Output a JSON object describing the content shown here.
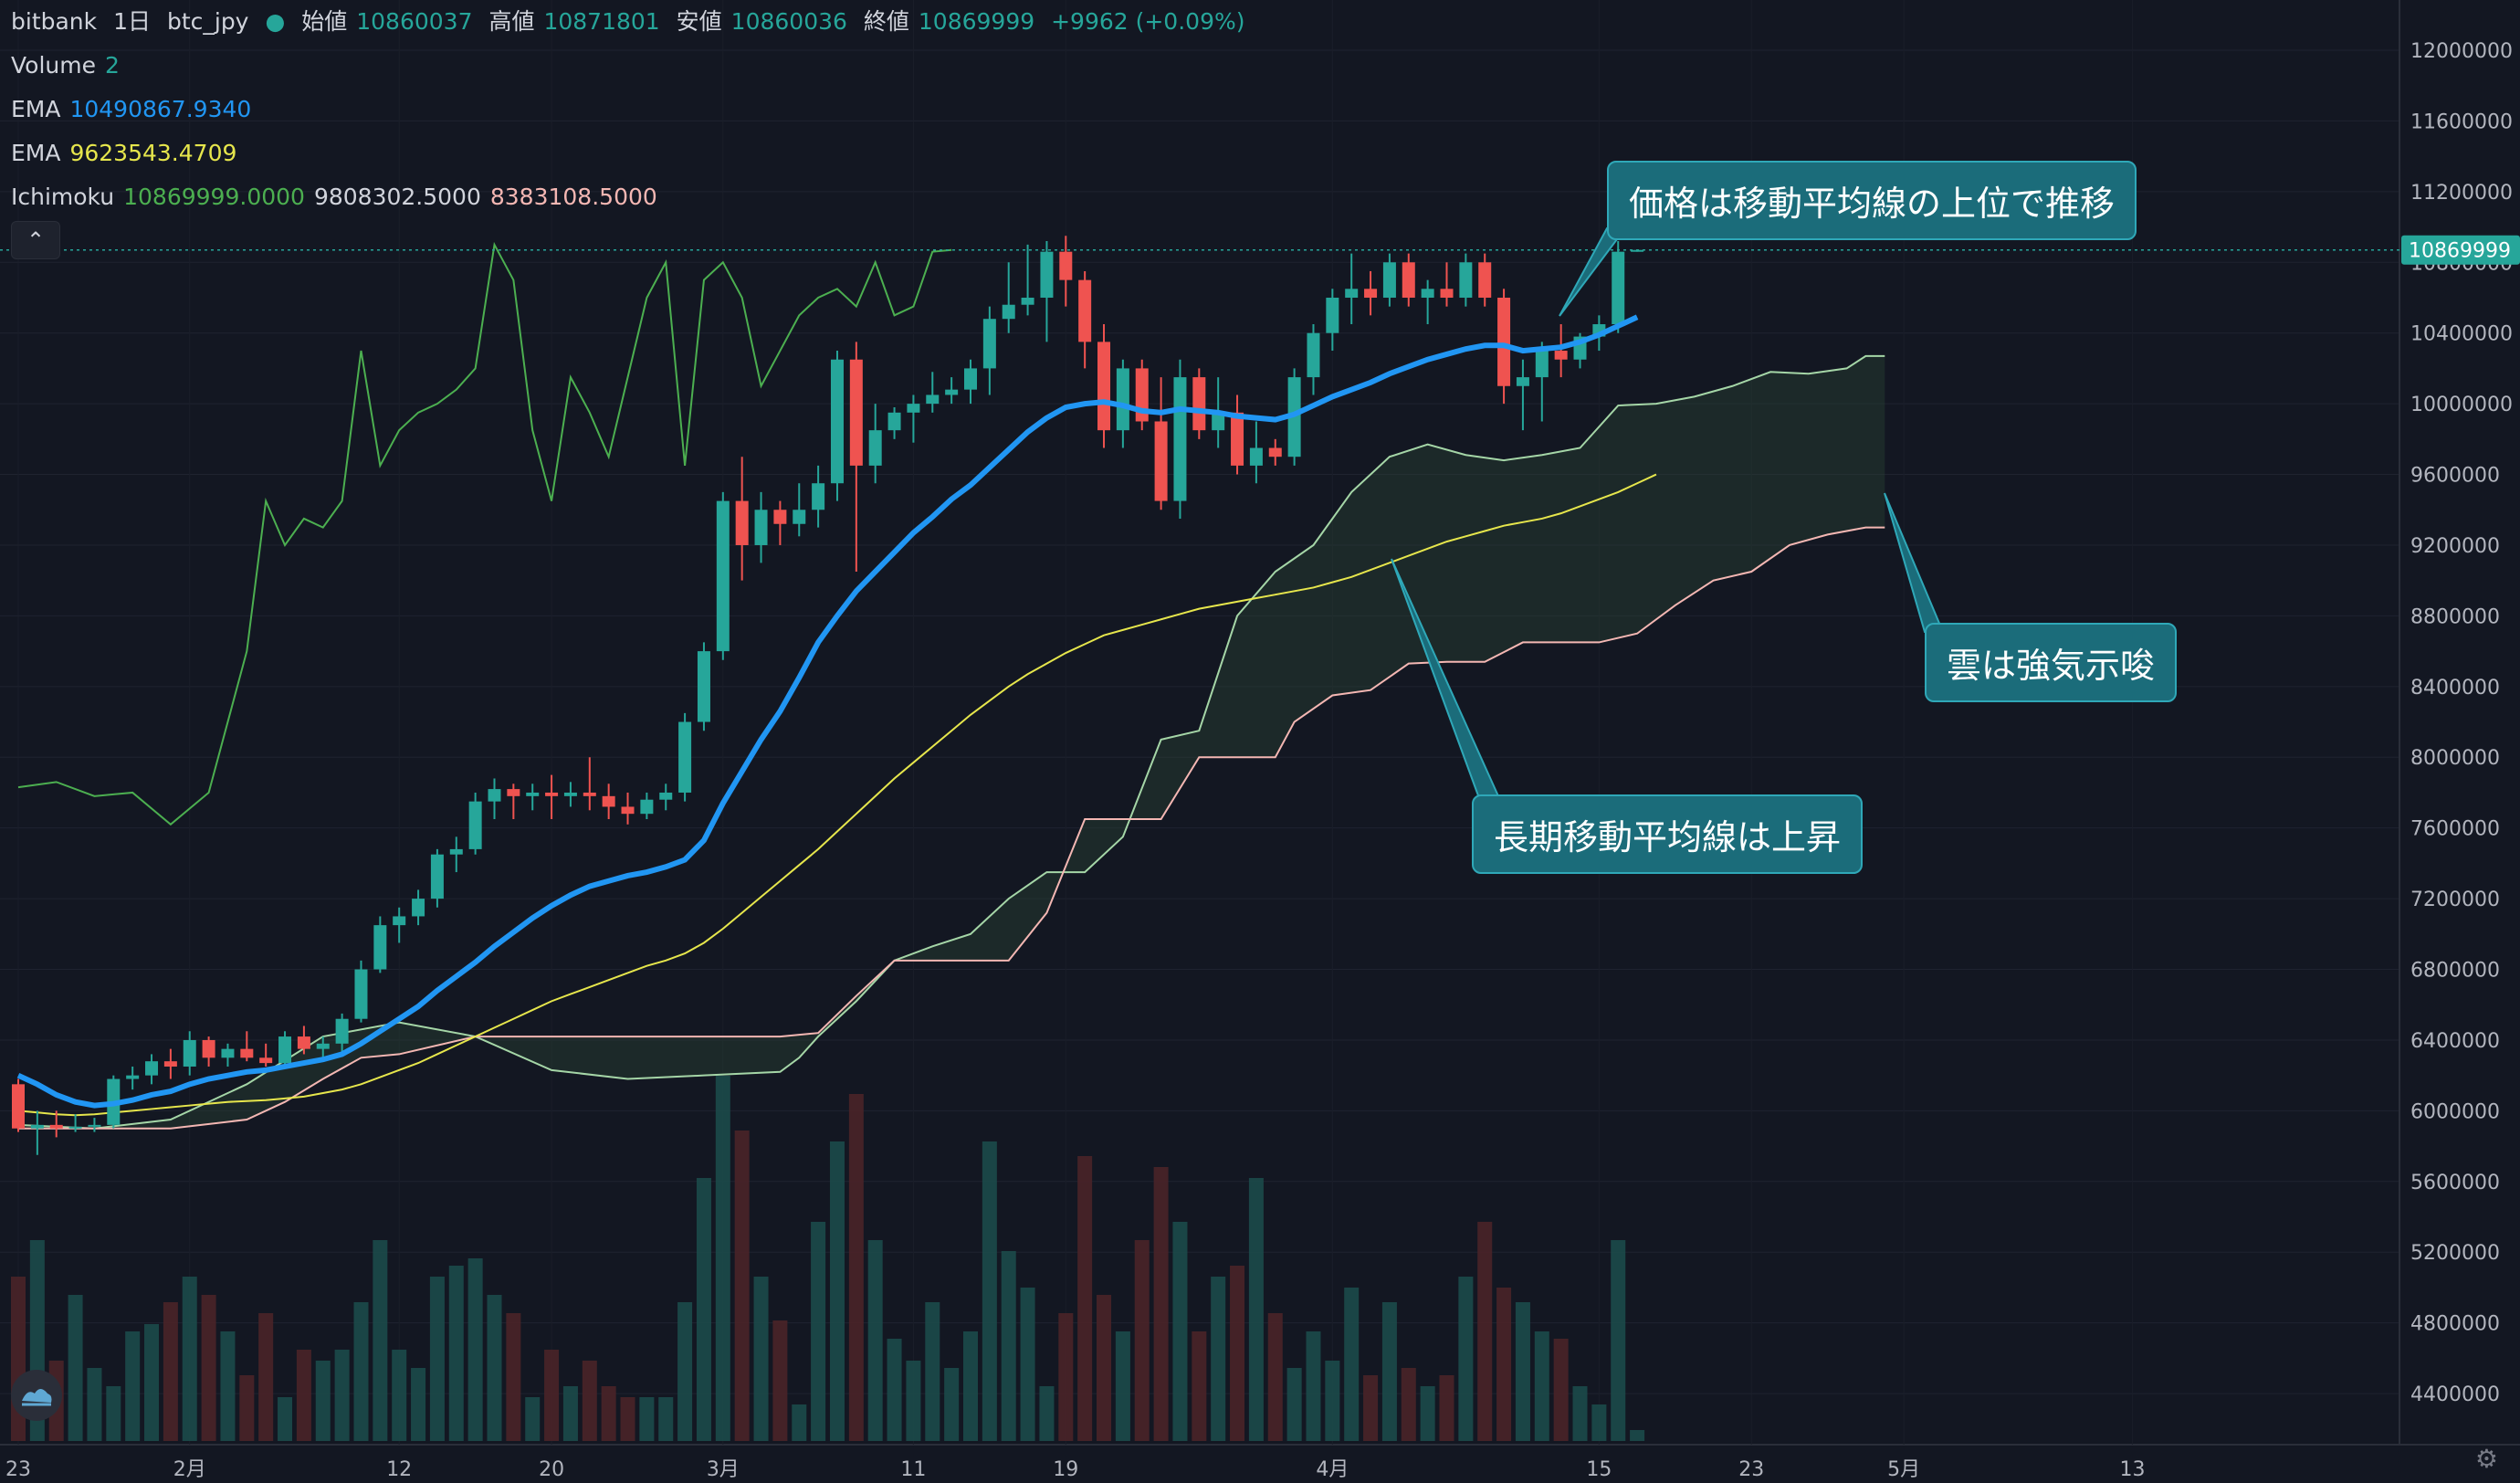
{
  "header": {
    "exchange": "bitbank",
    "timeframe": "1日",
    "symbol": "btc_jpy",
    "ohlc": [
      {
        "label": "始値",
        "value": "10860037"
      },
      {
        "label": "高値",
        "value": "10871801"
      },
      {
        "label": "安値",
        "value": "10860036"
      },
      {
        "label": "終値",
        "value": "10869999"
      }
    ],
    "change": "+9962 (+0.09%)"
  },
  "indicators": {
    "volume": {
      "label": "Volume",
      "value": "2"
    },
    "ema_fast": {
      "label": "EMA",
      "value": "10490867.9340"
    },
    "ema_slow": {
      "label": "EMA",
      "value": "9623543.4709"
    },
    "ichimoku": {
      "label": "Ichimoku",
      "values": [
        "10869999.0000",
        "9808302.5000",
        "8383108.5000"
      ]
    }
  },
  "callouts": {
    "price_above_ma": "価格は移動平均線の上位で推移",
    "cloud_bullish": "雲は強気示唆",
    "long_ma_rising": "長期移動平均線は上昇"
  },
  "icons": {
    "collapse": "chevron-up-icon",
    "logo": "tradingview-logo-icon",
    "settings": "gear-icon"
  },
  "colors": {
    "bull": "#26a69a",
    "bear": "#ef5350",
    "ema_fast": "#2196f3",
    "ema_slow": "#e6e64c",
    "chikou": "#4caf50",
    "senkou_a": "#a5d6a7",
    "senkou_b": "#f4b7b3",
    "background": "#131722"
  },
  "chart_data": {
    "type": "candlestick",
    "symbol": "btc_jpy",
    "xlabel": "",
    "ylabel": "",
    "ylim": [
      4200000,
      12200000
    ],
    "y_ticks": [
      4400000,
      4800000,
      5200000,
      5600000,
      6000000,
      6400000,
      6800000,
      7200000,
      7600000,
      8000000,
      8400000,
      8800000,
      9200000,
      9600000,
      10000000,
      10400000,
      10800000,
      11200000,
      11600000,
      12000000
    ],
    "x_tick_labels": [
      {
        "day": 0,
        "label": "23"
      },
      {
        "day": 9,
        "label": "2月"
      },
      {
        "day": 20,
        "label": "12"
      },
      {
        "day": 28,
        "label": "20"
      },
      {
        "day": 37,
        "label": "3月"
      },
      {
        "day": 47,
        "label": "11"
      },
      {
        "day": 55,
        "label": "19"
      },
      {
        "day": 69,
        "label": "4月"
      },
      {
        "day": 83,
        "label": "15"
      },
      {
        "day": 91,
        "label": "23"
      },
      {
        "day": 99,
        "label": "5月"
      },
      {
        "day": 111,
        "label": "13"
      }
    ],
    "last_price": 10869999,
    "candles": [
      [
        6150000,
        6180000,
        5880000,
        5900000
      ],
      [
        5900000,
        6000000,
        5750000,
        5920000
      ],
      [
        5920000,
        6000000,
        5850000,
        5900000
      ],
      [
        5900000,
        5980000,
        5880000,
        5910000
      ],
      [
        5910000,
        5960000,
        5880000,
        5920000
      ],
      [
        5920000,
        6200000,
        5900000,
        6180000
      ],
      [
        6180000,
        6250000,
        6120000,
        6200000
      ],
      [
        6200000,
        6320000,
        6150000,
        6280000
      ],
      [
        6280000,
        6350000,
        6180000,
        6250000
      ],
      [
        6250000,
        6450000,
        6200000,
        6400000
      ],
      [
        6400000,
        6420000,
        6250000,
        6300000
      ],
      [
        6300000,
        6380000,
        6250000,
        6350000
      ],
      [
        6350000,
        6450000,
        6280000,
        6300000
      ],
      [
        6300000,
        6380000,
        6250000,
        6270000
      ],
      [
        6270000,
        6450000,
        6250000,
        6420000
      ],
      [
        6420000,
        6480000,
        6320000,
        6350000
      ],
      [
        6350000,
        6420000,
        6280000,
        6380000
      ],
      [
        6380000,
        6550000,
        6330000,
        6520000
      ],
      [
        6520000,
        6850000,
        6500000,
        6800000
      ],
      [
        6800000,
        7100000,
        6780000,
        7050000
      ],
      [
        7050000,
        7150000,
        6950000,
        7100000
      ],
      [
        7100000,
        7250000,
        7050000,
        7200000
      ],
      [
        7200000,
        7480000,
        7150000,
        7450000
      ],
      [
        7450000,
        7550000,
        7350000,
        7480000
      ],
      [
        7480000,
        7800000,
        7450000,
        7750000
      ],
      [
        7750000,
        7880000,
        7650000,
        7820000
      ],
      [
        7820000,
        7850000,
        7650000,
        7780000
      ],
      [
        7780000,
        7850000,
        7700000,
        7800000
      ],
      [
        7800000,
        7900000,
        7650000,
        7780000
      ],
      [
        7780000,
        7860000,
        7720000,
        7800000
      ],
      [
        7800000,
        8000000,
        7700000,
        7780000
      ],
      [
        7780000,
        7850000,
        7650000,
        7720000
      ],
      [
        7720000,
        7800000,
        7620000,
        7680000
      ],
      [
        7680000,
        7800000,
        7650000,
        7760000
      ],
      [
        7760000,
        7850000,
        7700000,
        7800000
      ],
      [
        7800000,
        8250000,
        7750000,
        8200000
      ],
      [
        8200000,
        8650000,
        8150000,
        8600000
      ],
      [
        8600000,
        9500000,
        8550000,
        9450000
      ],
      [
        9450000,
        9700000,
        9000000,
        9200000
      ],
      [
        9200000,
        9500000,
        9100000,
        9400000
      ],
      [
        9400000,
        9450000,
        9200000,
        9320000
      ],
      [
        9320000,
        9550000,
        9250000,
        9400000
      ],
      [
        9400000,
        9650000,
        9300000,
        9550000
      ],
      [
        9550000,
        10300000,
        9450000,
        10250000
      ],
      [
        10250000,
        10350000,
        9050000,
        9650000
      ],
      [
        9650000,
        10000000,
        9550000,
        9850000
      ],
      [
        9850000,
        9980000,
        9800000,
        9950000
      ],
      [
        9950000,
        10050000,
        9780000,
        10000000
      ],
      [
        10000000,
        10180000,
        9950000,
        10050000
      ],
      [
        10050000,
        10150000,
        10000000,
        10080000
      ],
      [
        10080000,
        10250000,
        10000000,
        10200000
      ],
      [
        10200000,
        10550000,
        10050000,
        10480000
      ],
      [
        10480000,
        10800000,
        10400000,
        10560000
      ],
      [
        10560000,
        10900000,
        10500000,
        10600000
      ],
      [
        10600000,
        10920000,
        10350000,
        10860000
      ],
      [
        10860000,
        10950000,
        10550000,
        10700000
      ],
      [
        10700000,
        10750000,
        10200000,
        10350000
      ],
      [
        10350000,
        10450000,
        9750000,
        9850000
      ],
      [
        9850000,
        10250000,
        9750000,
        10200000
      ],
      [
        10200000,
        10250000,
        9850000,
        9900000
      ],
      [
        9900000,
        10150000,
        9400000,
        9450000
      ],
      [
        9450000,
        10250000,
        9350000,
        10150000
      ],
      [
        10150000,
        10200000,
        9800000,
        9850000
      ],
      [
        9850000,
        10150000,
        9750000,
        9950000
      ],
      [
        9950000,
        10050000,
        9600000,
        9650000
      ],
      [
        9650000,
        9900000,
        9550000,
        9750000
      ],
      [
        9750000,
        9800000,
        9650000,
        9700000
      ],
      [
        9700000,
        10200000,
        9650000,
        10150000
      ],
      [
        10150000,
        10450000,
        10050000,
        10400000
      ],
      [
        10400000,
        10650000,
        10300000,
        10600000
      ],
      [
        10600000,
        10850000,
        10450000,
        10650000
      ],
      [
        10650000,
        10750000,
        10500000,
        10600000
      ],
      [
        10600000,
        10850000,
        10550000,
        10800000
      ],
      [
        10800000,
        10850000,
        10550000,
        10600000
      ],
      [
        10600000,
        10700000,
        10450000,
        10650000
      ],
      [
        10650000,
        10800000,
        10550000,
        10600000
      ],
      [
        10600000,
        10850000,
        10550000,
        10800000
      ],
      [
        10800000,
        10850000,
        10550000,
        10600000
      ],
      [
        10600000,
        10650000,
        10000000,
        10100000
      ],
      [
        10100000,
        10250000,
        9850000,
        10150000
      ],
      [
        10150000,
        10350000,
        9900000,
        10300000
      ],
      [
        10300000,
        10450000,
        10150000,
        10250000
      ],
      [
        10250000,
        10400000,
        10200000,
        10380000
      ],
      [
        10380000,
        10500000,
        10300000,
        10450000
      ],
      [
        10450000,
        10920000,
        10400000,
        10860000
      ],
      [
        10860037,
        10871801,
        10860036,
        10869999
      ]
    ],
    "ema_fast": [
      6200000,
      6150000,
      6090000,
      6050000,
      6030000,
      6040000,
      6060000,
      6090000,
      6110000,
      6150000,
      6180000,
      6200000,
      6220000,
      6230000,
      6250000,
      6270000,
      6290000,
      6320000,
      6380000,
      6450000,
      6520000,
      6590000,
      6680000,
      6760000,
      6840000,
      6930000,
      7010000,
      7090000,
      7160000,
      7220000,
      7270000,
      7300000,
      7330000,
      7350000,
      7380000,
      7420000,
      7530000,
      7740000,
      7920000,
      8100000,
      8260000,
      8450000,
      8650000,
      8800000,
      8940000,
      9050000,
      9160000,
      9270000,
      9360000,
      9460000,
      9540000,
      9640000,
      9740000,
      9840000,
      9920000,
      9980000,
      10000000,
      10010000,
      9990000,
      9960000,
      9950000,
      9970000,
      9960000,
      9950000,
      9930000,
      9920000,
      9910000,
      9940000,
      9990000,
      10040000,
      10080000,
      10120000,
      10170000,
      10210000,
      10250000,
      10280000,
      10310000,
      10330000,
      10330000,
      10300000,
      10310000,
      10320000,
      10350000,
      10390000,
      10440000,
      10490000
    ],
    "ema_slow": [
      6000000,
      5990000,
      5980000,
      5975000,
      5980000,
      5990000,
      6000000,
      6010000,
      6020000,
      6030000,
      6040000,
      6050000,
      6055000,
      6060000,
      6070000,
      6080000,
      6100000,
      6120000,
      6150000,
      6190000,
      6230000,
      6270000,
      6320000,
      6370000,
      6420000,
      6470000,
      6520000,
      6570000,
      6620000,
      6660000,
      6700000,
      6740000,
      6780000,
      6820000,
      6850000,
      6890000,
      6950000,
      7030000,
      7120000,
      7210000,
      7300000,
      7390000,
      7480000,
      7580000,
      7680000,
      7780000,
      7880000,
      7970000,
      8060000,
      8150000,
      8240000,
      8320000,
      8400000,
      8470000,
      8530000,
      8590000,
      8640000,
      8690000,
      8720000,
      8750000,
      8780000,
      8810000,
      8840000,
      8860000,
      8880000,
      8900000,
      8920000,
      8940000,
      8960000,
      8990000,
      9020000,
      9060000,
      9100000,
      9140000,
      9180000,
      9220000,
      9250000,
      9280000,
      9310000,
      9330000,
      9350000,
      9380000,
      9420000,
      9460000,
      9500000,
      9550000,
      9600000
    ],
    "chikou": [
      [
        0,
        7830000
      ],
      [
        2,
        7860000
      ],
      [
        4,
        7780000
      ],
      [
        6,
        7800000
      ],
      [
        8,
        7620000
      ],
      [
        10,
        7800000
      ],
      [
        12,
        8600000
      ],
      [
        13,
        9450000
      ],
      [
        14,
        9200000
      ],
      [
        15,
        9350000
      ],
      [
        16,
        9300000
      ],
      [
        17,
        9450000
      ],
      [
        18,
        10300000
      ],
      [
        19,
        9650000
      ],
      [
        20,
        9850000
      ],
      [
        21,
        9950000
      ],
      [
        22,
        10000000
      ],
      [
        23,
        10080000
      ],
      [
        24,
        10200000
      ],
      [
        25,
        10900000
      ],
      [
        26,
        10700000
      ],
      [
        27,
        9850000
      ],
      [
        28,
        9450000
      ],
      [
        29,
        10150000
      ],
      [
        30,
        9950000
      ],
      [
        31,
        9700000
      ],
      [
        32,
        10150000
      ],
      [
        33,
        10600000
      ],
      [
        34,
        10800000
      ],
      [
        35,
        9650000
      ],
      [
        36,
        10700000
      ],
      [
        37,
        10800000
      ],
      [
        38,
        10600000
      ],
      [
        39,
        10100000
      ],
      [
        40,
        10300000
      ],
      [
        41,
        10500000
      ],
      [
        42,
        10600000
      ],
      [
        43,
        10650000
      ],
      [
        44,
        10550000
      ],
      [
        45,
        10800000
      ],
      [
        46,
        10500000
      ],
      [
        47,
        10550000
      ],
      [
        48,
        10860000
      ],
      [
        49,
        10870000
      ]
    ],
    "senkou_a": [
      [
        0,
        5920000
      ],
      [
        4,
        5900000
      ],
      [
        8,
        5950000
      ],
      [
        12,
        6150000
      ],
      [
        16,
        6420000
      ],
      [
        20,
        6500000
      ],
      [
        24,
        6420000
      ],
      [
        28,
        6230000
      ],
      [
        32,
        6180000
      ],
      [
        36,
        6200000
      ],
      [
        40,
        6220000
      ],
      [
        41,
        6300000
      ],
      [
        42,
        6420000
      ],
      [
        44,
        6620000
      ],
      [
        46,
        6850000
      ],
      [
        48,
        6930000
      ],
      [
        50,
        7000000
      ],
      [
        52,
        7200000
      ],
      [
        54,
        7350000
      ],
      [
        56,
        7350000
      ],
      [
        58,
        7550000
      ],
      [
        60,
        8100000
      ],
      [
        62,
        8150000
      ],
      [
        64,
        8800000
      ],
      [
        66,
        9050000
      ],
      [
        68,
        9200000
      ],
      [
        70,
        9500000
      ],
      [
        72,
        9700000
      ],
      [
        74,
        9770000
      ],
      [
        76,
        9710000
      ],
      [
        78,
        9680000
      ],
      [
        80,
        9710000
      ],
      [
        82,
        9750000
      ],
      [
        84,
        9990000
      ],
      [
        86,
        10000000
      ],
      [
        88,
        10040000
      ],
      [
        90,
        10100000
      ],
      [
        92,
        10180000
      ],
      [
        94,
        10170000
      ],
      [
        96,
        10200000
      ],
      [
        97,
        10270000
      ],
      [
        98,
        10270000
      ]
    ],
    "senkou_b": [
      [
        0,
        5900000
      ],
      [
        4,
        5900000
      ],
      [
        8,
        5900000
      ],
      [
        12,
        5950000
      ],
      [
        14,
        6050000
      ],
      [
        16,
        6180000
      ],
      [
        18,
        6300000
      ],
      [
        20,
        6320000
      ],
      [
        24,
        6420000
      ],
      [
        28,
        6420000
      ],
      [
        32,
        6420000
      ],
      [
        36,
        6420000
      ],
      [
        40,
        6420000
      ],
      [
        42,
        6440000
      ],
      [
        44,
        6650000
      ],
      [
        46,
        6850000
      ],
      [
        48,
        6850000
      ],
      [
        50,
        6850000
      ],
      [
        52,
        6850000
      ],
      [
        54,
        7120000
      ],
      [
        56,
        7650000
      ],
      [
        58,
        7650000
      ],
      [
        60,
        7650000
      ],
      [
        62,
        8000000
      ],
      [
        64,
        8000000
      ],
      [
        66,
        8000000
      ],
      [
        67,
        8200000
      ],
      [
        69,
        8350000
      ],
      [
        71,
        8380000
      ],
      [
        73,
        8530000
      ],
      [
        75,
        8540000
      ],
      [
        77,
        8540000
      ],
      [
        79,
        8650000
      ],
      [
        81,
        8650000
      ],
      [
        83,
        8650000
      ],
      [
        85,
        8700000
      ],
      [
        87,
        8860000
      ],
      [
        89,
        9000000
      ],
      [
        91,
        9050000
      ],
      [
        93,
        9200000
      ],
      [
        95,
        9260000
      ],
      [
        97,
        9300000
      ],
      [
        98,
        9300000
      ]
    ],
    "volume": [
      0.45,
      0.55,
      0.22,
      0.4,
      0.2,
      0.15,
      0.3,
      0.32,
      0.38,
      0.45,
      0.4,
      0.3,
      0.18,
      0.35,
      0.12,
      0.25,
      0.22,
      0.25,
      0.38,
      0.55,
      0.25,
      0.2,
      0.45,
      0.48,
      0.5,
      0.4,
      0.35,
      0.12,
      0.25,
      0.15,
      0.22,
      0.15,
      0.12,
      0.12,
      0.12,
      0.38,
      0.72,
      1.0,
      0.85,
      0.45,
      0.33,
      0.1,
      0.6,
      0.82,
      0.95,
      0.55,
      0.28,
      0.22,
      0.38,
      0.2,
      0.3,
      0.82,
      0.52,
      0.42,
      0.15,
      0.35,
      0.78,
      0.4,
      0.3,
      0.55,
      0.75,
      0.6,
      0.3,
      0.45,
      0.48,
      0.72,
      0.35,
      0.2,
      0.3,
      0.22,
      0.42,
      0.18,
      0.38,
      0.2,
      0.15,
      0.18,
      0.45,
      0.6,
      0.42,
      0.38,
      0.3,
      0.28,
      0.15,
      0.1,
      0.55,
      0.03
    ]
  }
}
